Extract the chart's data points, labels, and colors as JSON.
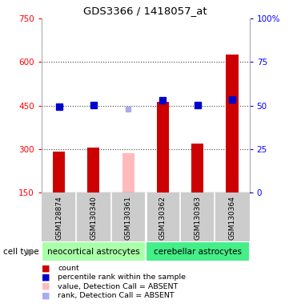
{
  "title": "GDS3366 / 1418057_at",
  "samples": [
    "GSM128874",
    "GSM130340",
    "GSM130361",
    "GSM130362",
    "GSM130363",
    "GSM130364"
  ],
  "bar_values": [
    290,
    305,
    null,
    463,
    320,
    625
  ],
  "bar_absent_values": [
    null,
    null,
    285,
    null,
    null,
    null
  ],
  "bar_color": "#cc0000",
  "bar_absent_color": "#ffbbbb",
  "percentile_values": [
    447,
    452,
    null,
    468,
    451,
    472
  ],
  "percentile_absent_values": [
    null,
    null,
    437,
    null,
    null,
    null
  ],
  "percentile_color": "#0000cc",
  "percentile_absent_color": "#aaaaee",
  "ylim_left": [
    150,
    750
  ],
  "ylim_right": [
    0,
    100
  ],
  "yticks_left": [
    150,
    300,
    450,
    600,
    750
  ],
  "yticks_right": [
    0,
    25,
    50,
    75,
    100
  ],
  "yticklabels_right": [
    "0",
    "25",
    "50",
    "75",
    "100%"
  ],
  "grid_yticks": [
    300,
    450,
    600
  ],
  "cell_type_groups": [
    {
      "label": "neocortical astrocytes",
      "color": "#aaffaa",
      "start": 0,
      "end": 3
    },
    {
      "label": "cerebellar astrocytes",
      "color": "#44ee88",
      "start": 3,
      "end": 6
    }
  ],
  "cell_type_label": "cell type",
  "legend": [
    {
      "label": "count",
      "color": "#cc0000"
    },
    {
      "label": "percentile rank within the sample",
      "color": "#0000cc"
    },
    {
      "label": "value, Detection Call = ABSENT",
      "color": "#ffbbbb"
    },
    {
      "label": "rank, Detection Call = ABSENT",
      "color": "#aaaaee"
    }
  ],
  "bar_width": 0.35,
  "marker_size": 6,
  "grid_linestyle": ":",
  "grid_color": "#444444",
  "background_color": "#ffffff",
  "plot_bg_color": "#ffffff",
  "sample_bg_color": "#cccccc",
  "spine_color": "#aaaaaa"
}
